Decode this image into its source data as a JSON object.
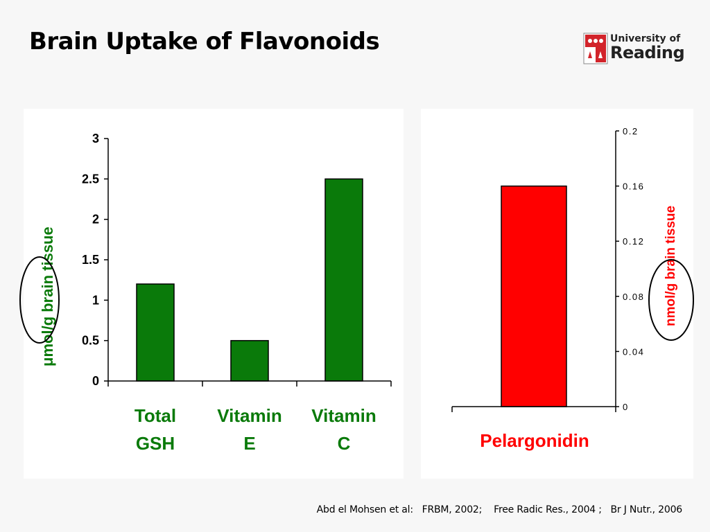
{
  "slide": {
    "title": "Brain Uptake of Flavonoids",
    "logo_line1": "University of",
    "logo_line2": "Reading",
    "citation": "Abd el Mohsen et al:   FRBM, 2002;    Free Radic Res., 2004 ;   Br J Nutr., 2006"
  },
  "colors": {
    "green": "#0a7a0a",
    "red": "#ff0000",
    "logo_red": "#d2232a"
  },
  "chart_data": [
    {
      "type": "bar",
      "categories": [
        "Total GSH",
        "Vitamin E",
        "Vitamin C"
      ],
      "category_lines": [
        [
          "Total",
          "GSH"
        ],
        [
          "Vitamin",
          "E"
        ],
        [
          "Vitamin",
          "C"
        ]
      ],
      "values": [
        1.2,
        0.5,
        2.5
      ],
      "ylabel_mu": "μ",
      "ylabel_rest": "mol/g brain tissue",
      "ylim": [
        0,
        3
      ],
      "yticks": [
        "0",
        "0.5",
        "1",
        "1.5",
        "2",
        "2.5",
        "3"
      ],
      "bar_color": "#0a7a0a",
      "grid": false,
      "annotation": "circle around unit"
    },
    {
      "type": "bar",
      "categories": [
        "Pelargonidin"
      ],
      "values": [
        0.16
      ],
      "ylabel": "nmol/g brain tissue",
      "ylim": [
        0,
        0.2
      ],
      "yticks": [
        "0",
        "0.04",
        "0.08",
        "0.12",
        "0.16",
        "0.2"
      ],
      "bar_color": "#ff0000",
      "grid": false,
      "axis_side": "right",
      "annotation": "circle around unit"
    }
  ]
}
